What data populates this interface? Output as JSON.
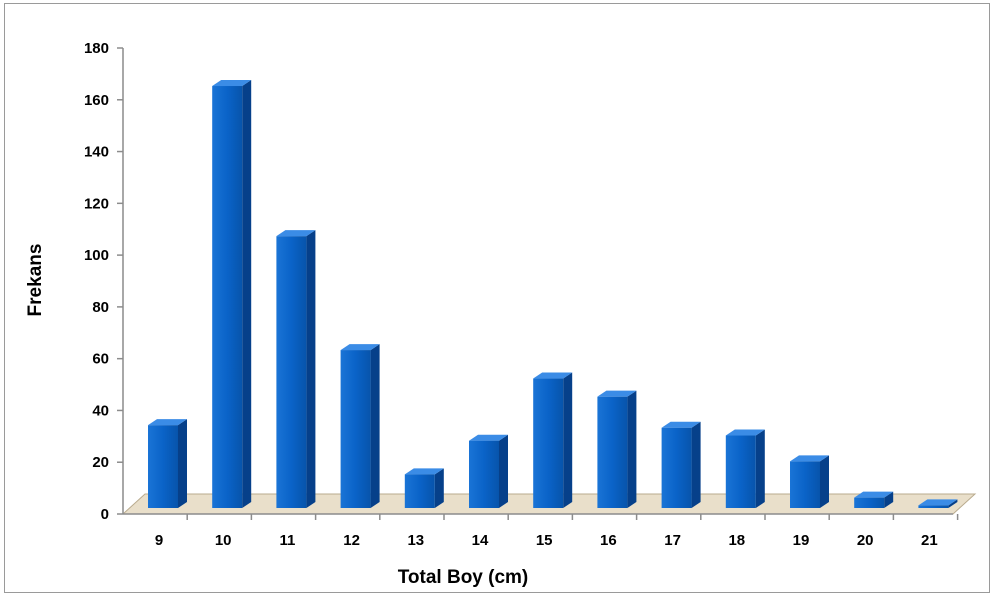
{
  "chart_data": {
    "type": "bar",
    "xlabel": "Total Boy (cm)",
    "ylabel": "Frekans",
    "categories": [
      "9",
      "10",
      "11",
      "12",
      "13",
      "14",
      "15",
      "16",
      "17",
      "18",
      "19",
      "20",
      "21"
    ],
    "values": [
      32,
      163,
      105,
      61,
      13,
      26,
      50,
      43,
      31,
      28,
      18,
      4,
      1
    ],
    "ylim": [
      0,
      180
    ],
    "yticks": [
      0,
      20,
      40,
      60,
      80,
      100,
      120,
      140,
      160,
      180
    ],
    "bar_color": "#0a5fc0",
    "floor_color": "#e8dcc4",
    "grid": false,
    "legend": "none"
  }
}
